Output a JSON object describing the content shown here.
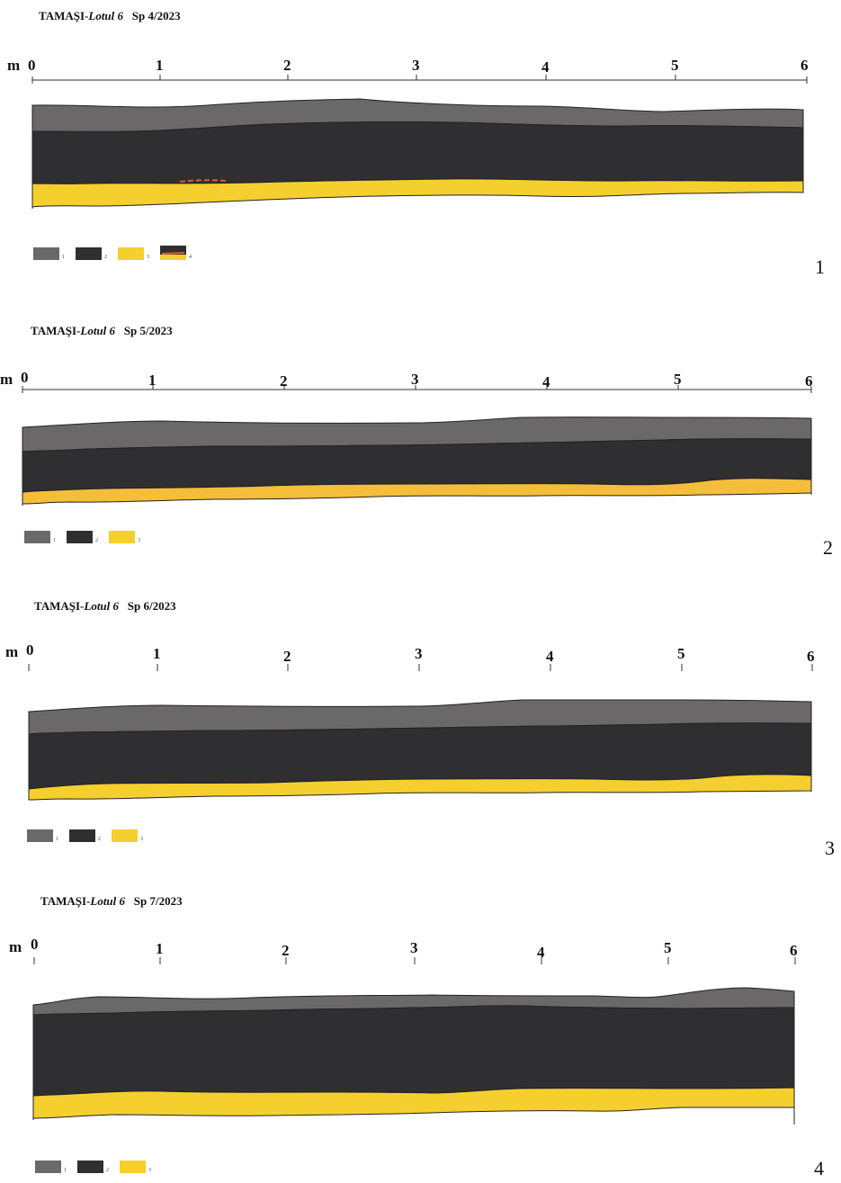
{
  "colors": {
    "layer1": "#6b686a",
    "layer2": "#2f2f31",
    "layer3": "#f5cf2e",
    "layer3_alt": "#f5be3a",
    "burnt": "#e05a34",
    "outline": "#222222"
  },
  "scale": {
    "unit": "m",
    "ticks": [
      "0",
      "1",
      "2",
      "3",
      "4",
      "5",
      "6"
    ]
  },
  "profiles": [
    {
      "title_site": "TAMAŞI-",
      "title_lot": "Lotul 6",
      "title_section": "Sp 4/2023",
      "number": "1",
      "legend": [
        "1",
        "2",
        "3",
        "4"
      ]
    },
    {
      "title_site": "TAMAŞI-",
      "title_lot": "Lotul 6",
      "title_section": "Sp 5/2023",
      "number": "2",
      "legend": [
        "1",
        "2",
        "3"
      ]
    },
    {
      "title_site": "TAMAŞI-",
      "title_lot": "Lotul 6",
      "title_section": "Sp 6/2023",
      "number": "3",
      "legend": [
        "1",
        "2",
        "3"
      ]
    },
    {
      "title_site": "TAMAŞI-",
      "title_lot": "Lotul 6",
      "title_section": "Sp 7/2023",
      "number": "4",
      "legend": [
        "1",
        "2",
        "3"
      ]
    }
  ]
}
